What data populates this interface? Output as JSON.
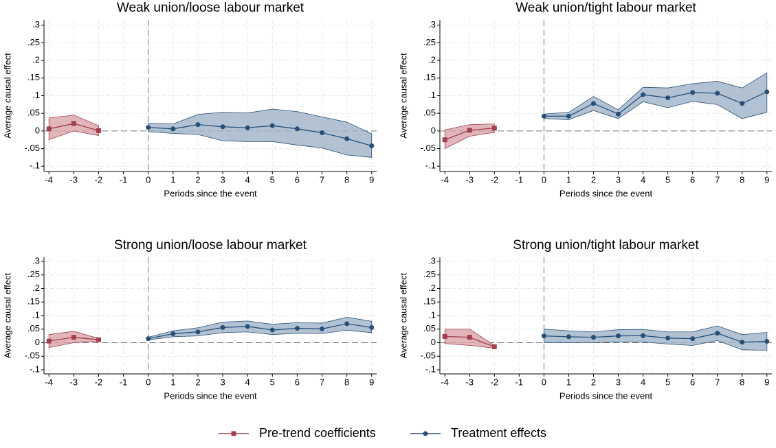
{
  "chart_data": [
    {
      "type": "line",
      "title": "Weak union/loose labour market",
      "xlabel": "Periods since the event",
      "ylabel": "Average causal effect",
      "xlim": [
        -4.2,
        9.2
      ],
      "ylim": [
        -0.115,
        0.315
      ],
      "xticks": [
        -4,
        -3,
        -2,
        -1,
        0,
        1,
        2,
        3,
        4,
        5,
        6,
        7,
        8,
        9
      ],
      "yticks": [
        {
          "value": -0.1,
          "label": "-.1"
        },
        {
          "value": -0.05,
          "label": "-.05"
        },
        0,
        {
          "value": 0.05,
          "label": ".05"
        },
        {
          "value": 0.1,
          "label": ".1"
        },
        {
          "value": 0.15,
          "label": ".15"
        },
        {
          "value": 0.2,
          "label": ".2"
        },
        {
          "value": 0.25,
          "label": ".25"
        },
        {
          "value": 0.3,
          "label": ".3"
        }
      ],
      "grid": true,
      "ref_x": 0,
      "ref_y": 0,
      "legend": "bottom",
      "series": [
        {
          "name": "Pre-trend coefficients",
          "color": "#a0404c",
          "fill": "#d9a3a9",
          "marker": "square",
          "x": [
            -4,
            -3,
            -2
          ],
          "values": [
            0.006,
            0.021,
            0.001
          ],
          "lower": [
            -0.025,
            0.0,
            -0.013
          ],
          "upper": [
            0.037,
            0.045,
            0.015
          ]
        },
        {
          "name": "Treatment effects",
          "color": "#264f78",
          "fill": "#9fb3c8",
          "marker": "circle",
          "x": [
            0,
            1,
            2,
            3,
            4,
            5,
            6,
            7,
            8,
            9
          ],
          "values": [
            0.01,
            0.006,
            0.018,
            0.012,
            0.009,
            0.015,
            0.006,
            -0.005,
            -0.022,
            -0.042
          ],
          "lower": [
            -0.002,
            -0.007,
            -0.01,
            -0.028,
            -0.03,
            -0.03,
            -0.04,
            -0.048,
            -0.068,
            -0.075
          ],
          "upper": [
            0.022,
            0.02,
            0.047,
            0.053,
            0.051,
            0.062,
            0.055,
            0.04,
            0.025,
            -0.008
          ]
        }
      ]
    },
    {
      "type": "line",
      "title": "Weak union/tight labour market",
      "xlabel": "Periods since the event",
      "ylabel": "Average causal effect",
      "xlim": [
        -4.2,
        9.2
      ],
      "ylim": [
        -0.115,
        0.315
      ],
      "xticks": [
        -4,
        -3,
        -2,
        -1,
        0,
        1,
        2,
        3,
        4,
        5,
        6,
        7,
        8,
        9
      ],
      "yticks": [
        {
          "value": -0.1,
          "label": "-.1"
        },
        {
          "value": -0.05,
          "label": "-.05"
        },
        0,
        {
          "value": 0.05,
          "label": ".05"
        },
        {
          "value": 0.1,
          "label": ".1"
        },
        {
          "value": 0.15,
          "label": ".15"
        },
        {
          "value": 0.2,
          "label": ".2"
        },
        {
          "value": 0.25,
          "label": ".25"
        },
        {
          "value": 0.3,
          "label": ".3"
        }
      ],
      "grid": true,
      "ref_x": 0,
      "ref_y": 0,
      "series": [
        {
          "color": "#a0404c",
          "fill": "#d9a3a9",
          "marker": "square",
          "x": [
            -4,
            -3,
            -2
          ],
          "values": [
            -0.025,
            0.002,
            0.008
          ],
          "lower": [
            -0.05,
            -0.015,
            -0.004
          ],
          "upper": [
            0.003,
            0.018,
            0.02
          ]
        },
        {
          "color": "#264f78",
          "fill": "#9fb3c8",
          "marker": "circle",
          "x": [
            0,
            1,
            2,
            3,
            4,
            5,
            6,
            7,
            8,
            9
          ],
          "values": [
            0.042,
            0.042,
            0.078,
            0.048,
            0.103,
            0.094,
            0.109,
            0.107,
            0.078,
            0.111
          ],
          "lower": [
            0.035,
            0.032,
            0.058,
            0.035,
            0.083,
            0.066,
            0.084,
            0.075,
            0.035,
            0.053
          ],
          "upper": [
            0.048,
            0.053,
            0.098,
            0.06,
            0.124,
            0.122,
            0.134,
            0.141,
            0.122,
            0.165
          ]
        }
      ]
    },
    {
      "type": "line",
      "title": "Strong union/loose labour market",
      "xlabel": "Periods since the event",
      "ylabel": "Average causal effect",
      "xlim": [
        -4.2,
        9.2
      ],
      "ylim": [
        -0.115,
        0.315
      ],
      "xticks": [
        -4,
        -3,
        -2,
        -1,
        0,
        1,
        2,
        3,
        4,
        5,
        6,
        7,
        8,
        9
      ],
      "yticks": [
        {
          "value": -0.1,
          "label": "-.1"
        },
        {
          "value": -0.05,
          "label": "-.05"
        },
        0,
        {
          "value": 0.05,
          "label": ".05"
        },
        {
          "value": 0.1,
          "label": ".1"
        },
        {
          "value": 0.15,
          "label": ".15"
        },
        {
          "value": 0.2,
          "label": ".2"
        },
        {
          "value": 0.25,
          "label": ".25"
        },
        {
          "value": 0.3,
          "label": ".3"
        }
      ],
      "grid": true,
      "ref_x": 0,
      "ref_y": 0,
      "series": [
        {
          "color": "#a0404c",
          "fill": "#d9a3a9",
          "marker": "square",
          "x": [
            -4,
            -3,
            -2
          ],
          "values": [
            0.006,
            0.02,
            0.011
          ],
          "lower": [
            -0.018,
            0.0,
            0.006
          ],
          "upper": [
            0.03,
            0.042,
            0.016
          ]
        },
        {
          "color": "#264f78",
          "fill": "#9fb3c8",
          "marker": "circle",
          "x": [
            0,
            1,
            2,
            3,
            4,
            5,
            6,
            7,
            8,
            9
          ],
          "values": [
            0.015,
            0.033,
            0.04,
            0.056,
            0.06,
            0.047,
            0.053,
            0.051,
            0.07,
            0.056
          ],
          "lower": [
            0.01,
            0.022,
            0.025,
            0.037,
            0.04,
            0.03,
            0.035,
            0.034,
            0.046,
            0.037
          ],
          "upper": [
            0.02,
            0.044,
            0.055,
            0.076,
            0.08,
            0.068,
            0.074,
            0.072,
            0.094,
            0.079
          ]
        }
      ]
    },
    {
      "type": "line",
      "title": "Strong union/tight labour market",
      "xlabel": "Periods since the event",
      "ylabel": "Average causal effect",
      "xlim": [
        -4.2,
        9.2
      ],
      "ylim": [
        -0.115,
        0.315
      ],
      "xticks": [
        -4,
        -3,
        -2,
        -1,
        0,
        1,
        2,
        3,
        4,
        5,
        6,
        7,
        8,
        9
      ],
      "yticks": [
        {
          "value": -0.1,
          "label": "-.1"
        },
        {
          "value": -0.05,
          "label": "-.05"
        },
        0,
        {
          "value": 0.05,
          "label": ".05"
        },
        {
          "value": 0.1,
          "label": ".1"
        },
        {
          "value": 0.15,
          "label": ".15"
        },
        {
          "value": 0.2,
          "label": ".2"
        },
        {
          "value": 0.25,
          "label": ".25"
        },
        {
          "value": 0.3,
          "label": ".3"
        }
      ],
      "grid": true,
      "ref_x": 0,
      "ref_y": 0,
      "series": [
        {
          "color": "#a0404c",
          "fill": "#d9a3a9",
          "marker": "square",
          "x": [
            -4,
            -3,
            -2
          ],
          "values": [
            0.023,
            0.02,
            -0.015
          ],
          "lower": [
            -0.003,
            -0.01,
            -0.02
          ],
          "upper": [
            0.05,
            0.05,
            -0.01
          ]
        },
        {
          "color": "#264f78",
          "fill": "#9fb3c8",
          "marker": "circle",
          "x": [
            0,
            1,
            2,
            3,
            4,
            5,
            6,
            7,
            8,
            9
          ],
          "values": [
            0.025,
            0.022,
            0.02,
            0.025,
            0.026,
            0.017,
            0.015,
            0.035,
            0.002,
            0.005
          ],
          "lower": [
            0.0,
            0.0,
            0.0,
            0.003,
            0.003,
            -0.005,
            -0.01,
            0.008,
            -0.026,
            -0.028
          ],
          "upper": [
            0.05,
            0.044,
            0.04,
            0.048,
            0.049,
            0.04,
            0.04,
            0.062,
            0.03,
            0.038
          ]
        }
      ]
    }
  ]
}
